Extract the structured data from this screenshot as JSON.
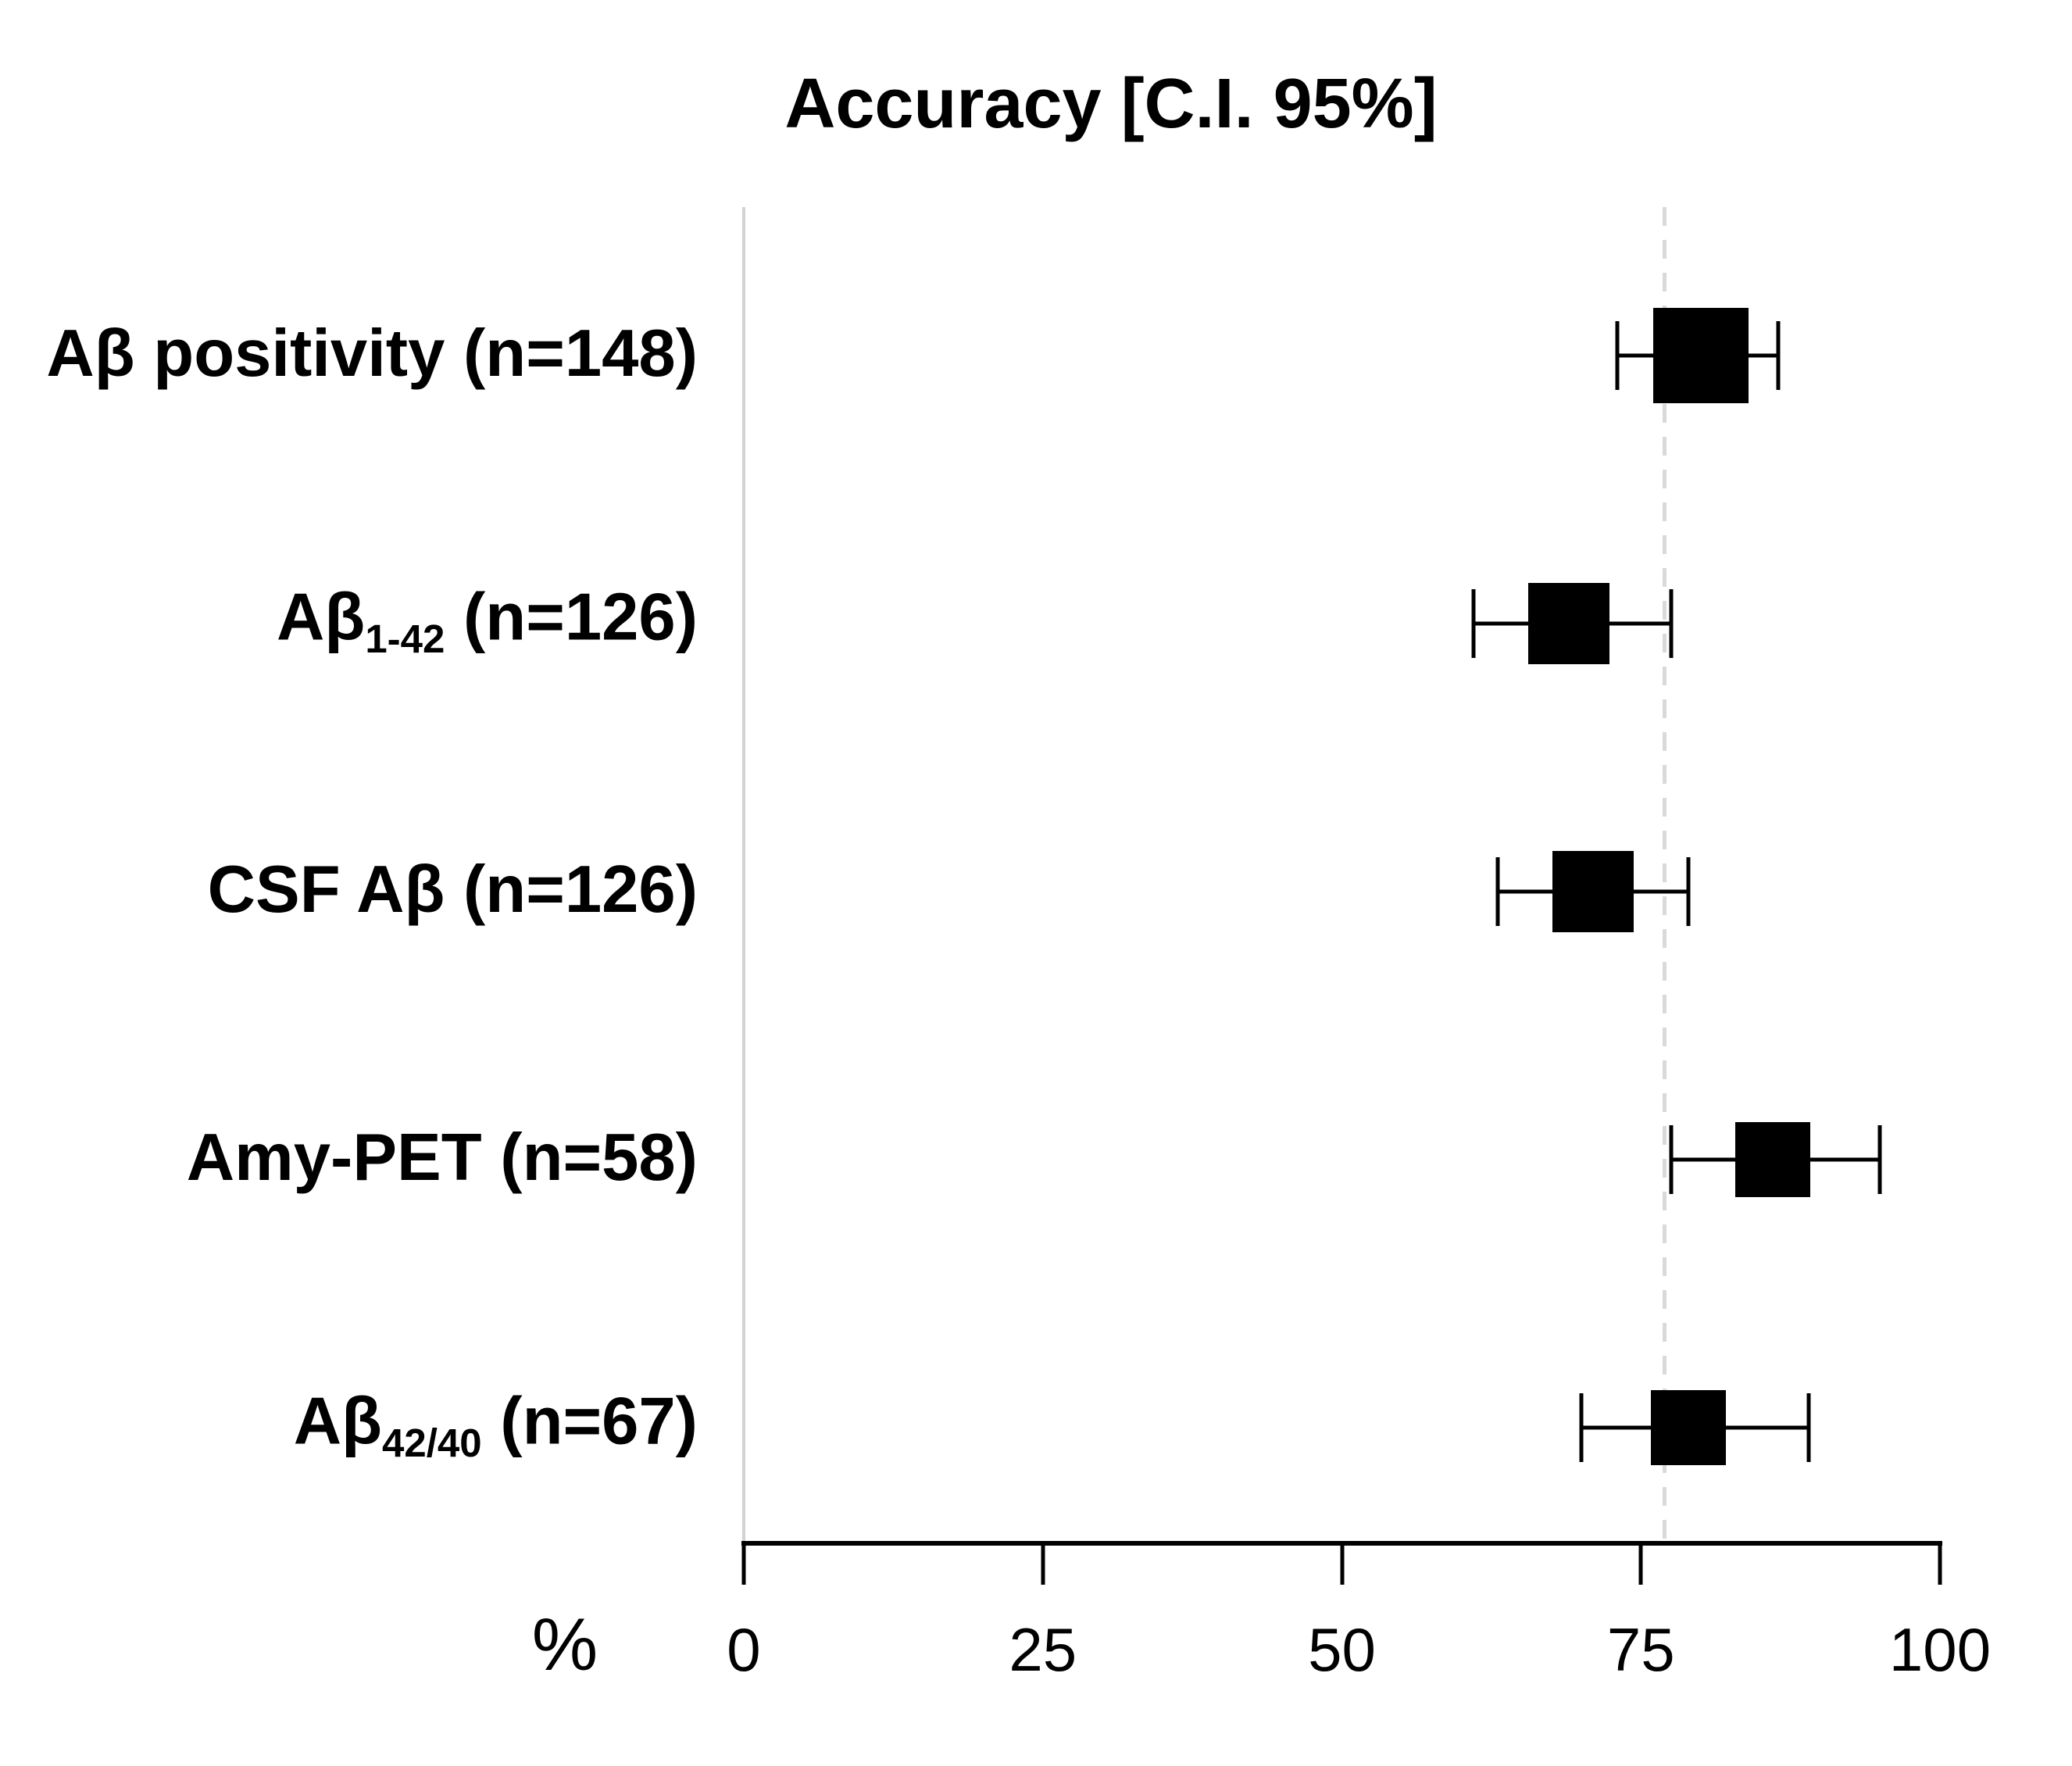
{
  "chart_data": {
    "type": "forest",
    "title": "Accuracy [C.I. 95%]",
    "xlabel": "%",
    "x_axis": {
      "min": 0,
      "max": 100,
      "ticks": [
        0,
        25,
        50,
        75,
        100
      ]
    },
    "reference_line": {
      "value": 77,
      "style": "dashed",
      "color": "#d9d9d9"
    },
    "legend": "none",
    "grid": "off",
    "colors": {
      "marker": "#000000",
      "axis": "#000000",
      "left_spine": "#d3d3d3"
    },
    "rows": [
      {
        "label_pre": "Aβ positivity",
        "label_sub": "",
        "label_post": " (n=148)",
        "n": 148,
        "estimate": 80,
        "ci_low": 73,
        "ci_high": 86.5
      },
      {
        "label_pre": "Aβ",
        "label_sub": "1-42",
        "label_post": " (n=126)",
        "n": 126,
        "estimate": 69,
        "ci_low": 61,
        "ci_high": 77.5
      },
      {
        "label_pre": "CSF Aβ",
        "label_sub": "",
        "label_post": " (n=126)",
        "n": 126,
        "estimate": 71,
        "ci_low": 63,
        "ci_high": 79
      },
      {
        "label_pre": "Amy-PET",
        "label_sub": "",
        "label_post": " (n=58)",
        "n": 58,
        "estimate": 86,
        "ci_low": 77.5,
        "ci_high": 95
      },
      {
        "label_pre": "Aβ",
        "label_sub": "42/40",
        "label_post": " (n=67)",
        "n": 67,
        "estimate": 79,
        "ci_low": 70,
        "ci_high": 89
      }
    ]
  }
}
